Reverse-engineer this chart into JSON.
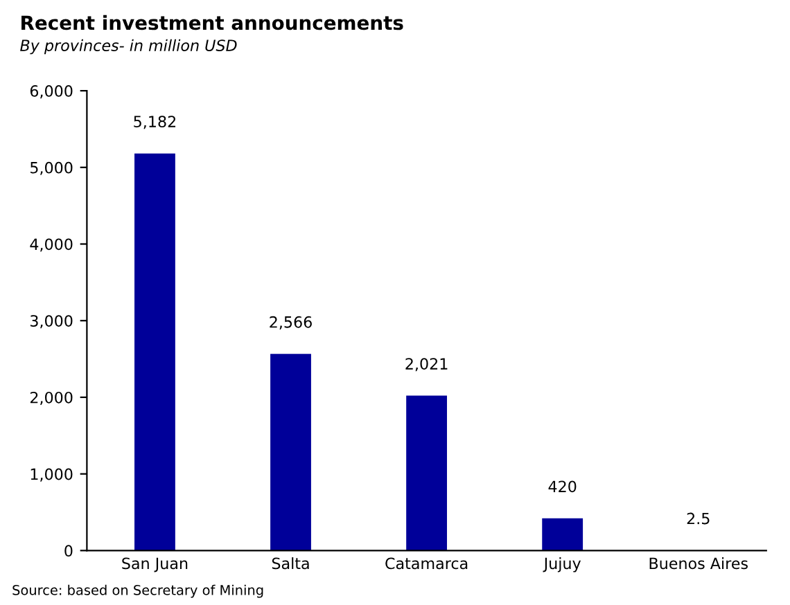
{
  "chart_data": {
    "type": "bar",
    "title": "Recent investment announcements",
    "subtitle": "By provinces- in million USD",
    "categories": [
      "San Juan",
      "Salta",
      "Catamarca",
      "Jujuy",
      "Buenos Aires"
    ],
    "values": [
      5182,
      2566,
      2021,
      420,
      2.5
    ],
    "value_labels": [
      "5,182",
      "2,566",
      "2,021",
      "420",
      "2.5"
    ],
    "color": "#000099",
    "ylim": [
      0,
      6000
    ],
    "yticks": [
      0,
      {
        "value": 1000,
        "label": "1,000"
      },
      {
        "value": 2000,
        "label": "2,000"
      },
      {
        "value": 3000,
        "label": "3,000"
      },
      {
        "value": 4000,
        "label": "4,000"
      },
      {
        "value": 5000,
        "label": "5,000"
      },
      {
        "value": 6000,
        "label": "6,000"
      }
    ],
    "grid": false,
    "legend": false,
    "annotations": [
      "Source: based on Secretary of Mining"
    ]
  }
}
